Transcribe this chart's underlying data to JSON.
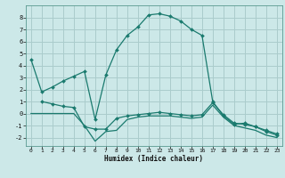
{
  "xlabel": "Humidex (Indice chaleur)",
  "bg_color": "#cce8e8",
  "grid_color": "#aacccc",
  "line_color": "#1a7a6e",
  "xlim": [
    -0.5,
    23.5
  ],
  "ylim": [
    -2.7,
    9.0
  ],
  "xticks": [
    0,
    1,
    2,
    3,
    4,
    5,
    6,
    7,
    8,
    9,
    10,
    11,
    12,
    13,
    14,
    15,
    16,
    17,
    18,
    19,
    20,
    21,
    22,
    23
  ],
  "yticks": [
    -2,
    -1,
    0,
    1,
    2,
    3,
    4,
    5,
    6,
    7,
    8
  ],
  "line1_x": [
    0,
    1,
    2,
    3,
    4,
    5,
    6,
    7,
    8,
    9,
    10,
    11,
    12,
    13,
    14,
    15,
    16,
    17,
    18,
    19,
    20,
    21,
    22,
    23
  ],
  "line1_y": [
    4.5,
    1.8,
    2.2,
    2.7,
    3.1,
    3.5,
    -0.5,
    3.2,
    5.3,
    6.5,
    7.2,
    8.2,
    8.3,
    8.1,
    7.7,
    7.0,
    6.5,
    1.0,
    -0.2,
    -0.9,
    -0.8,
    -1.1,
    -1.4,
    -1.7
  ],
  "line2_x": [
    1,
    2,
    3,
    4,
    5,
    6,
    7,
    8,
    9,
    10,
    11,
    12,
    13,
    14,
    15,
    16,
    17,
    18,
    19,
    20,
    21,
    22,
    23
  ],
  "line2_y": [
    1.0,
    0.8,
    0.6,
    0.5,
    -1.1,
    -1.3,
    -1.3,
    -0.4,
    -0.2,
    -0.1,
    0.0,
    0.1,
    0.0,
    -0.1,
    -0.2,
    -0.1,
    0.9,
    -0.1,
    -0.8,
    -0.9,
    -1.1,
    -1.5,
    -1.8
  ],
  "line3_x": [
    0,
    1,
    2,
    3,
    4,
    5,
    6,
    7,
    8,
    9,
    10,
    11,
    12,
    13,
    14,
    15,
    16,
    17,
    18,
    19,
    20,
    21,
    22,
    23
  ],
  "line3_y": [
    0.0,
    0.0,
    0.0,
    0.0,
    0.0,
    -1.0,
    -2.3,
    -1.5,
    -1.4,
    -0.5,
    -0.3,
    -0.2,
    -0.2,
    -0.2,
    -0.3,
    -0.4,
    -0.3,
    0.7,
    -0.3,
    -1.0,
    -1.2,
    -1.4,
    -1.8,
    -2.0
  ]
}
